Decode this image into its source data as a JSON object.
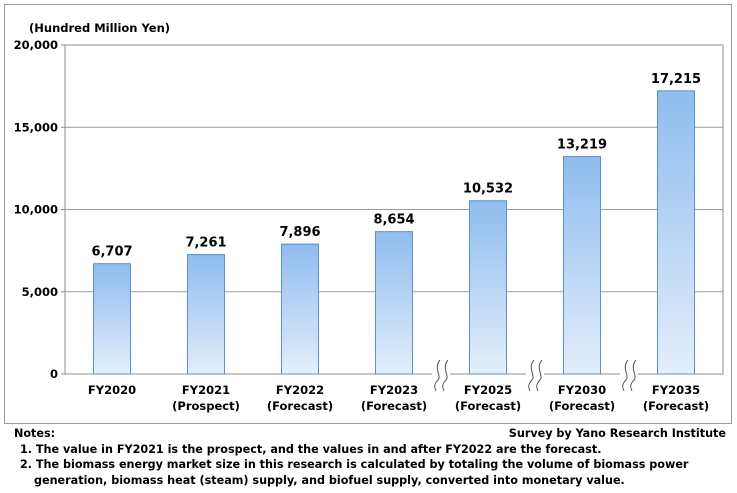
{
  "chart_data": {
    "type": "bar",
    "unit_label": "(Hundred Million Yen)",
    "categories": [
      [
        "FY2020"
      ],
      [
        "FY2021",
        "(Prospect)"
      ],
      [
        "FY2022",
        "(Forecast)"
      ],
      [
        "FY2023",
        "(Forecast)"
      ],
      [
        "FY2025",
        "(Forecast)"
      ],
      [
        "FY2030",
        "(Forecast)"
      ],
      [
        "FY2035",
        "(Forecast)"
      ]
    ],
    "values": [
      6707,
      7261,
      7896,
      8654,
      10532,
      13219,
      17215
    ],
    "value_labels": [
      "6,707",
      "7,261",
      "7,896",
      "8,654",
      "10,532",
      "13,219",
      "17,215"
    ],
    "ylim": [
      0,
      20000
    ],
    "yticks": [
      0,
      5000,
      10000,
      15000,
      20000
    ],
    "ytick_labels": [
      "0",
      "5,000",
      "10,000",
      "15,000",
      "20,000"
    ],
    "axis_breaks_after": [
      3,
      4,
      5
    ],
    "grid": true,
    "bar_color_top": "#8fbcef",
    "bar_color_bottom": "#e3eefb",
    "bar_border": "#5b8fc9"
  },
  "notes": {
    "heading": "Notes:",
    "source": "Survey by Yano Research Institute",
    "items": [
      {
        "text": "1. The value in FY2021 is the prospect, and the values in and after FY2022 are the forecast.",
        "cont": ""
      },
      {
        "text": "2. The biomass energy market size in this research is calculated by totaling the volume of biomass power",
        "cont": "generation, biomass heat (steam) supply, and biofuel supply, converted into monetary value."
      }
    ]
  }
}
